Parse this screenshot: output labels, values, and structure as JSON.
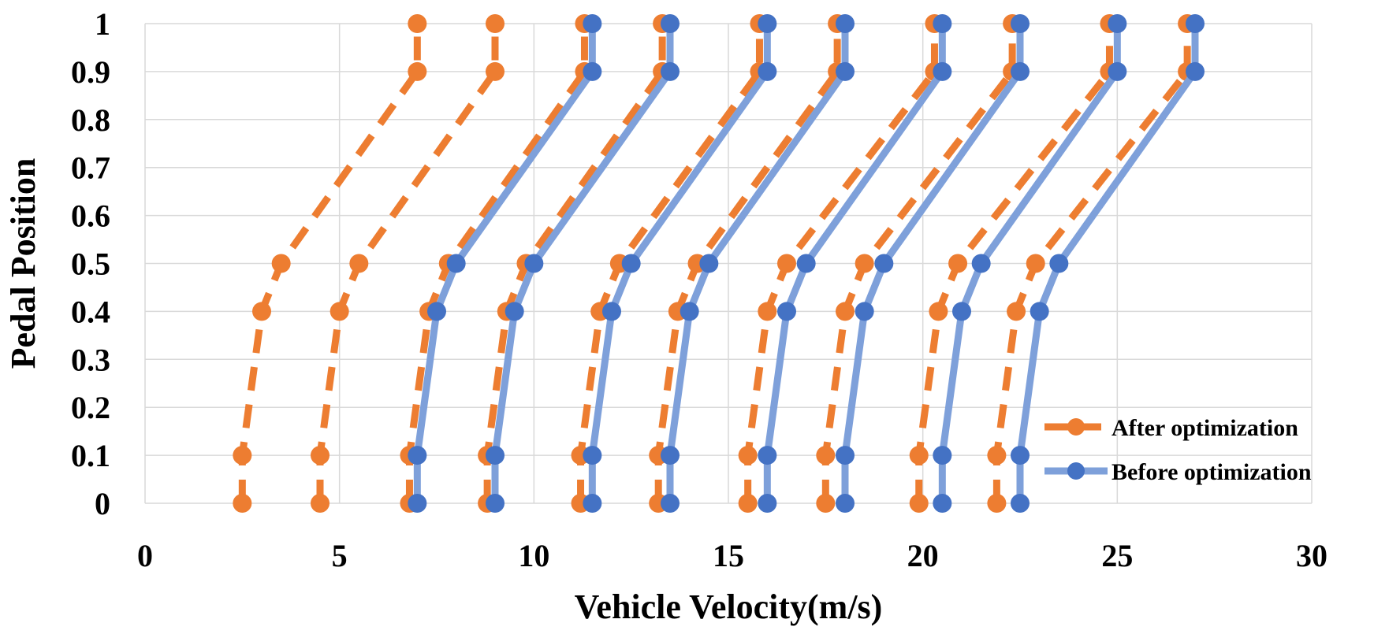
{
  "chart_data": {
    "type": "line",
    "title": "",
    "xlabel": "Vehicle Velocity(m/s)",
    "ylabel": "Pedal Position",
    "xlim": [
      0,
      30
    ],
    "ylim": [
      0,
      1
    ],
    "x_ticks": [
      "0",
      "5",
      "10",
      "15",
      "20",
      "25",
      "30"
    ],
    "y_ticks": [
      "0",
      "0.1",
      "0.2",
      "0.3",
      "0.4",
      "0.5",
      "0.6",
      "0.7",
      "0.8",
      "0.9",
      "1"
    ],
    "grid": true,
    "legend_placement": "bottom-right",
    "legend": [
      {
        "label": "After optimization",
        "color": "#ED7D31",
        "style": "dashed"
      },
      {
        "label": "Before optimization",
        "color": "#7EA0DA",
        "marker_color": "#4472C4",
        "style": "solid"
      }
    ],
    "pedal_positions": [
      0,
      0.1,
      0.4,
      0.5,
      0.9,
      1
    ],
    "series": [
      {
        "group": "After optimization",
        "velocities": [
          2.5,
          2.5,
          3.0,
          3.5,
          7.0,
          7.0
        ]
      },
      {
        "group": "After optimization",
        "velocities": [
          4.5,
          4.5,
          5.0,
          5.5,
          9.0,
          9.0
        ]
      },
      {
        "group": "After optimization",
        "velocities": [
          6.8,
          6.8,
          7.3,
          7.8,
          11.3,
          11.3
        ]
      },
      {
        "group": "After optimization",
        "velocities": [
          8.8,
          8.8,
          9.3,
          9.8,
          13.3,
          13.3
        ]
      },
      {
        "group": "After optimization",
        "velocities": [
          11.2,
          11.2,
          11.7,
          12.2,
          15.8,
          15.8
        ]
      },
      {
        "group": "After optimization",
        "velocities": [
          13.2,
          13.2,
          13.7,
          14.2,
          17.8,
          17.8
        ]
      },
      {
        "group": "After optimization",
        "velocities": [
          15.5,
          15.5,
          16.0,
          16.5,
          20.3,
          20.3
        ]
      },
      {
        "group": "After optimization",
        "velocities": [
          17.5,
          17.5,
          18.0,
          18.5,
          22.3,
          22.3
        ]
      },
      {
        "group": "After optimization",
        "velocities": [
          19.9,
          19.9,
          20.4,
          20.9,
          24.8,
          24.8
        ]
      },
      {
        "group": "After optimization",
        "velocities": [
          21.9,
          21.9,
          22.4,
          22.9,
          26.8,
          26.8
        ]
      },
      {
        "group": "Before optimization",
        "velocities": [
          7.0,
          7.0,
          7.5,
          8.0,
          11.5,
          11.5
        ]
      },
      {
        "group": "Before optimization",
        "velocities": [
          9.0,
          9.0,
          9.5,
          10.0,
          13.5,
          13.5
        ]
      },
      {
        "group": "Before optimization",
        "velocities": [
          11.5,
          11.5,
          12.0,
          12.5,
          16.0,
          16.0
        ]
      },
      {
        "group": "Before optimization",
        "velocities": [
          13.5,
          13.5,
          14.0,
          14.5,
          18.0,
          18.0
        ]
      },
      {
        "group": "Before optimization",
        "velocities": [
          16.0,
          16.0,
          16.5,
          17.0,
          20.5,
          20.5
        ]
      },
      {
        "group": "Before optimization",
        "velocities": [
          18.0,
          18.0,
          18.5,
          19.0,
          22.5,
          22.5
        ]
      },
      {
        "group": "Before optimization",
        "velocities": [
          20.5,
          20.5,
          21.0,
          21.5,
          25.0,
          25.0
        ]
      },
      {
        "group": "Before optimization",
        "velocities": [
          22.5,
          22.5,
          23.0,
          23.5,
          27.0,
          27.0
        ]
      }
    ]
  }
}
